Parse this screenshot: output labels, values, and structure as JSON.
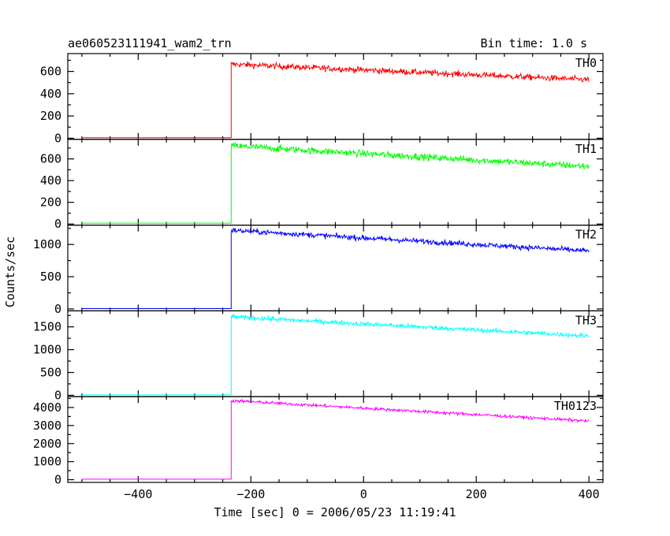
{
  "header": {
    "title": "ae060523111941_wam2_trn",
    "bin_time": "Bin time: 1.0 s"
  },
  "chart_data": {
    "type": "line",
    "xlabel": "Time [sec] 0 = 2006/05/23 11:19:41",
    "ylabel": "Counts/sec",
    "xlim": [
      -525,
      425
    ],
    "x_ticks": [
      -400,
      -200,
      0,
      200,
      400
    ],
    "onset_time": -235,
    "x_range_data": [
      -500,
      400
    ],
    "panels": [
      {
        "name": "TH0",
        "color": "#ff0000",
        "ylim": [
          -10,
          760
        ],
        "y_ticks": [
          0,
          200,
          400,
          600
        ],
        "baseline": 5,
        "level_start": 665,
        "level_end": 525,
        "noise": 60
      },
      {
        "name": "TH1",
        "color": "#00ff00",
        "ylim": [
          -10,
          780
        ],
        "y_ticks": [
          0,
          200,
          400,
          600
        ],
        "baseline": 8,
        "level_start": 720,
        "level_end": 530,
        "noise": 70
      },
      {
        "name": "TH2",
        "color": "#0000ff",
        "ylim": [
          -30,
          1300
        ],
        "y_ticks": [
          0,
          500,
          1000
        ],
        "baseline": 5,
        "level_start": 1220,
        "level_end": 900,
        "noise": 90
      },
      {
        "name": "TH3",
        "color": "#00ffff",
        "ylim": [
          -30,
          1850
        ],
        "y_ticks": [
          0,
          500,
          1000,
          1500
        ],
        "baseline": 10,
        "level_start": 1720,
        "level_end": 1300,
        "noise": 110
      },
      {
        "name": "TH0123",
        "color": "#ff00ff",
        "ylim": [
          -150,
          4600
        ],
        "y_ticks": [
          0,
          1000,
          2000,
          3000,
          4000
        ],
        "baseline": 30,
        "level_start": 4380,
        "level_end": 3250,
        "noise": 180
      }
    ]
  }
}
